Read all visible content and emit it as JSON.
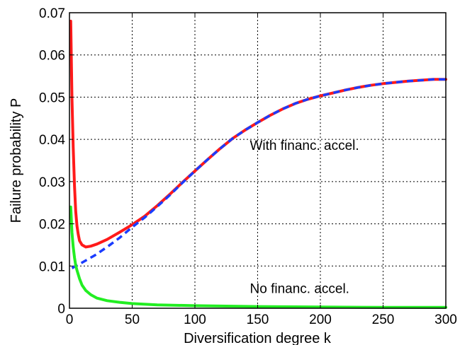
{
  "chart_data": {
    "type": "line",
    "title": "",
    "xlabel": "Diversification degree k",
    "ylabel": "Failure probability P",
    "xlim": [
      0,
      300
    ],
    "ylim": [
      0,
      0.07
    ],
    "xticks": [
      "0",
      "50",
      "100",
      "150",
      "200",
      "250",
      "300"
    ],
    "yticks": [
      "0",
      "0.01",
      "0.02",
      "0.03",
      "0.04",
      "0.05",
      "0.06",
      "0.07"
    ],
    "grid": true,
    "annotations": [
      {
        "text": "With financ. accel.",
        "x": 150,
        "y": 0.0375
      },
      {
        "text": "No financ. accel.",
        "x": 150,
        "y": 0.0036
      }
    ],
    "series": [
      {
        "color": "#ff1a1a",
        "style": "solid",
        "points": [
          [
            1,
            0.068
          ],
          [
            2,
            0.05
          ],
          [
            3,
            0.038
          ],
          [
            4,
            0.029
          ],
          [
            5,
            0.023
          ],
          [
            6,
            0.0195
          ],
          [
            7,
            0.0175
          ],
          [
            8,
            0.016
          ],
          [
            10,
            0.015
          ],
          [
            13,
            0.0145
          ],
          [
            17,
            0.0147
          ],
          [
            22,
            0.0152
          ],
          [
            30,
            0.0163
          ],
          [
            40,
            0.018
          ],
          [
            50,
            0.0198
          ],
          [
            60,
            0.0218
          ],
          [
            70,
            0.0243
          ],
          [
            80,
            0.027
          ],
          [
            90,
            0.0298
          ],
          [
            100,
            0.0325
          ],
          [
            110,
            0.0352
          ],
          [
            120,
            0.0378
          ],
          [
            130,
            0.0402
          ],
          [
            140,
            0.0422
          ],
          [
            150,
            0.044
          ],
          [
            160,
            0.0457
          ],
          [
            170,
            0.0472
          ],
          [
            180,
            0.0485
          ],
          [
            190,
            0.0495
          ],
          [
            200,
            0.0503
          ],
          [
            210,
            0.051
          ],
          [
            220,
            0.0517
          ],
          [
            230,
            0.0523
          ],
          [
            240,
            0.0528
          ],
          [
            250,
            0.0532
          ],
          [
            260,
            0.0535
          ],
          [
            270,
            0.0538
          ],
          [
            280,
            0.054
          ],
          [
            290,
            0.0542
          ],
          [
            300,
            0.0542
          ]
        ]
      },
      {
        "color": "#1a3cff",
        "style": "dashed",
        "points": [
          [
            2,
            0.0095
          ],
          [
            10,
            0.0108
          ],
          [
            20,
            0.0125
          ],
          [
            30,
            0.0145
          ],
          [
            40,
            0.0167
          ],
          [
            50,
            0.0192
          ],
          [
            60,
            0.0215
          ],
          [
            70,
            0.0241
          ],
          [
            80,
            0.0268
          ],
          [
            90,
            0.0297
          ],
          [
            100,
            0.0325
          ],
          [
            110,
            0.0352
          ],
          [
            120,
            0.0378
          ],
          [
            130,
            0.0402
          ],
          [
            140,
            0.0422
          ],
          [
            150,
            0.044
          ],
          [
            160,
            0.0457
          ],
          [
            170,
            0.0472
          ],
          [
            180,
            0.0485
          ],
          [
            190,
            0.0495
          ],
          [
            200,
            0.0503
          ],
          [
            210,
            0.051
          ],
          [
            220,
            0.0517
          ],
          [
            230,
            0.0523
          ],
          [
            240,
            0.0528
          ],
          [
            250,
            0.0532
          ],
          [
            260,
            0.0535
          ],
          [
            270,
            0.0538
          ],
          [
            280,
            0.054
          ],
          [
            290,
            0.0542
          ],
          [
            300,
            0.0542
          ]
        ]
      },
      {
        "color": "#22ee22",
        "style": "solid",
        "points": [
          [
            1,
            0.024
          ],
          [
            2,
            0.018
          ],
          [
            3,
            0.0145
          ],
          [
            4,
            0.012
          ],
          [
            5,
            0.0102
          ],
          [
            6,
            0.009
          ],
          [
            7,
            0.008
          ],
          [
            8,
            0.007
          ],
          [
            10,
            0.0055
          ],
          [
            13,
            0.0042
          ],
          [
            17,
            0.0032
          ],
          [
            22,
            0.0024
          ],
          [
            30,
            0.0018
          ],
          [
            40,
            0.0014
          ],
          [
            50,
            0.0011
          ],
          [
            70,
            0.0008
          ],
          [
            100,
            0.0006
          ],
          [
            150,
            0.0004
          ],
          [
            200,
            0.0003
          ],
          [
            250,
            0.0002
          ],
          [
            300,
            0.0002
          ]
        ]
      }
    ]
  }
}
